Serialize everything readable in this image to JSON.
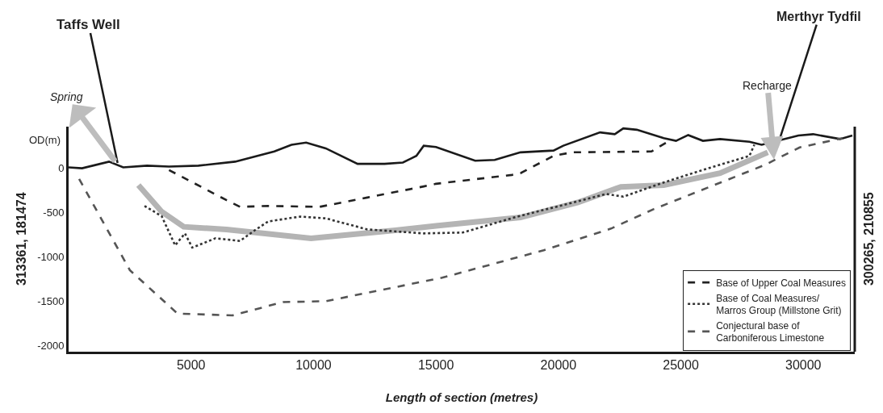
{
  "chart_data": {
    "type": "line",
    "xlabel": "Length of section (metres)",
    "ylabel": "OD(m)",
    "xlim": [
      0,
      32100
    ],
    "ylim": [
      -2070,
      470
    ],
    "xticks": [
      5000,
      10000,
      15000,
      20000,
      25000,
      30000
    ],
    "yticks": [
      0,
      -500,
      -1000,
      -1500,
      -2000
    ],
    "legend": "bottom right",
    "marker": "none",
    "series": [
      {
        "color": "#1a1a1a",
        "line_style": "solid",
        "x": [
          0,
          550,
          1650,
          2230,
          3200,
          4100,
          5300,
          6800,
          8400,
          9100,
          9700,
          10500,
          11800,
          12900,
          13650,
          14200,
          14500,
          15000,
          16600,
          17400,
          18450,
          19800,
          20200,
          21700,
          22300,
          22650,
          23200,
          24300,
          24800,
          25300,
          25900,
          26600,
          27800,
          28300,
          29800,
          30400,
          31500,
          32000
        ],
        "values": [
          10,
          0,
          75,
          10,
          30,
          20,
          30,
          75,
          190,
          265,
          290,
          225,
          50,
          50,
          65,
          140,
          255,
          240,
          85,
          95,
          180,
          200,
          255,
          405,
          385,
          450,
          435,
          340,
          310,
          375,
          310,
          330,
          300,
          265,
          370,
          385,
          330,
          370
        ]
      },
      {
        "color": "#b4b4b4",
        "line_style": "solid",
        "x": [
          2850,
          3800,
          4700,
          6450,
          9900,
          13350,
          15000,
          18450,
          20800,
          22550,
          24300,
          26600,
          28550
        ],
        "values": [
          -190,
          -490,
          -660,
          -690,
          -790,
          -700,
          -650,
          -555,
          -385,
          -210,
          -190,
          -55,
          180
        ]
      },
      {
        "name": "Base of Upper Coal Measures",
        "color": "#222222",
        "line_style": "dashed",
        "x": [
          4100,
          6450,
          7000,
          8150,
          10250,
          12200,
          14500,
          15000,
          18100,
          18450,
          19800,
          20550,
          23800,
          24400
        ],
        "values": [
          -20,
          -360,
          -435,
          -425,
          -435,
          -330,
          -205,
          -175,
          -75,
          -55,
          140,
          180,
          190,
          290
        ]
      },
      {
        "name": "Base of Coal Measures/\nMarros Group (Millstone Grit)",
        "color": "#333333",
        "line_style": "dotted",
        "x": [
          3100,
          3800,
          4350,
          4750,
          5050,
          6000,
          7000,
          7600,
          8150,
          9450,
          10500,
          12200,
          14500,
          16100,
          18200,
          21950,
          22650,
          24300,
          26000,
          27800,
          28000
        ],
        "values": [
          -425,
          -540,
          -870,
          -735,
          -895,
          -790,
          -820,
          -700,
          -600,
          -545,
          -565,
          -690,
          -735,
          -725,
          -555,
          -290,
          -320,
          -160,
          -10,
          140,
          265
        ]
      },
      {
        "name": "Conjectural base of\nCarboniferous Limestone",
        "color": "#555555",
        "line_style": "dashed",
        "x": [
          430,
          2500,
          4450,
          6700,
          8750,
          10500,
          15250,
          19400,
          22150,
          23900,
          28450,
          29300,
          29850,
          31600
        ],
        "values": [
          -120,
          -1150,
          -1640,
          -1660,
          -1510,
          -1500,
          -1235,
          -925,
          -680,
          -460,
          40,
          160,
          235,
          340
        ]
      }
    ],
    "annotations": [
      {
        "text": "Taffs Well",
        "x": 2000,
        "y": 60
      },
      {
        "text": "Merthyr Tydfil",
        "x": 29000,
        "y": 300
      },
      {
        "text": "Spring",
        "x": 1900,
        "y": 80
      },
      {
        "text": "Recharge",
        "x": 28800,
        "y": 100
      },
      "313361, 181474",
      "300265, 210855"
    ]
  }
}
